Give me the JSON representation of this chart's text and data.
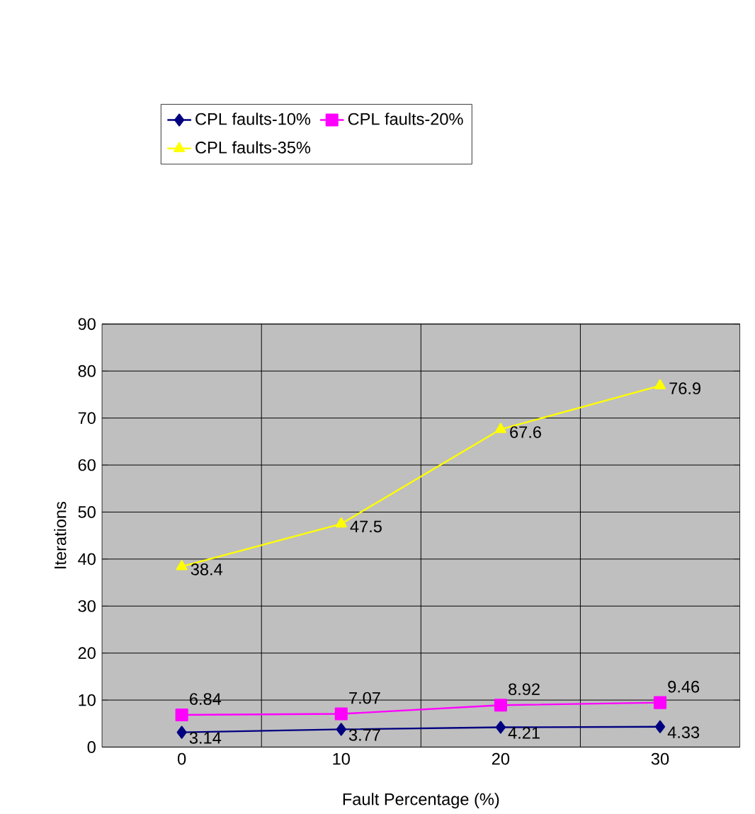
{
  "chart_data": {
    "type": "line",
    "xlabel": "Fault Percentage (%)",
    "ylabel": "Iterations",
    "categories": [
      "0",
      "10",
      "20",
      "30"
    ],
    "series": [
      {
        "name": "CPL faults-10%",
        "color": "#000080",
        "marker": "diamond",
        "values": [
          3.14,
          3.77,
          4.21,
          4.33
        ]
      },
      {
        "name": "CPL faults-20%",
        "color": "#ff00ff",
        "marker": "square",
        "values": [
          6.84,
          7.07,
          8.92,
          9.46
        ]
      },
      {
        "name": "CPL faults-35%",
        "color": "#ffff00",
        "marker": "triangle",
        "values": [
          38.4,
          47.5,
          67.6,
          76.9
        ]
      }
    ],
    "ylim": [
      0,
      90
    ],
    "yticks": [
      0,
      10,
      20,
      30,
      40,
      50,
      60,
      70,
      80,
      90
    ],
    "grid": true,
    "legend": "top",
    "data_labels": true
  }
}
